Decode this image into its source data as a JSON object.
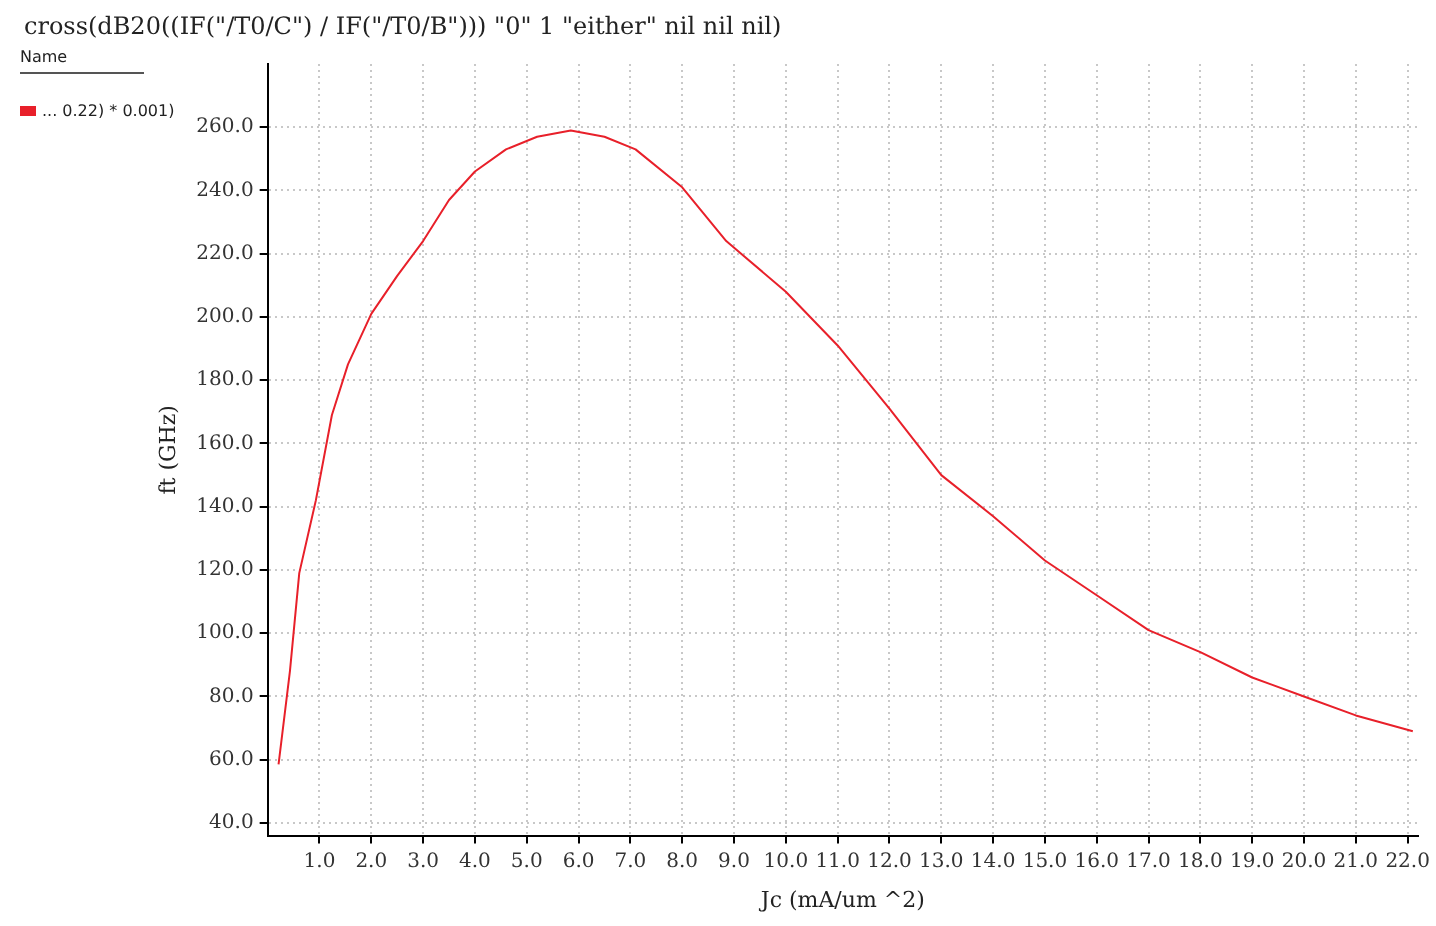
{
  "chart_data": {
    "type": "line",
    "title": "cross(dB20((IF(\"/T0/C\") / IF(\"/T0/B\"))) \"0\" 1 \"either\" nil nil nil)",
    "legend_title": "Name",
    "xlabel": "Jc (mA/um ^2)",
    "ylabel": "ft (GHz)",
    "series": [
      {
        "name": "... 0.22) * 0.001)",
        "color": "#e8202a",
        "x": [
          0.21,
          0.43,
          0.61,
          0.93,
          1.24,
          1.55,
          2.0,
          2.5,
          3.0,
          3.5,
          4.0,
          4.6,
          5.2,
          5.85,
          6.5,
          7.1,
          8.0,
          8.85,
          10.0,
          11.0,
          12.0,
          13.0,
          14.0,
          15.0,
          16.0,
          17.0,
          18.0,
          19.0,
          20.0,
          21.0,
          22.1
        ],
        "values": [
          58.5,
          88,
          119,
          142,
          169,
          185,
          201,
          213,
          224,
          237,
          246,
          253,
          257,
          259,
          257,
          253,
          241,
          224,
          208,
          191,
          171,
          150,
          137,
          123,
          112,
          101,
          94,
          86,
          80,
          74,
          69
        ]
      }
    ],
    "xlim": [
      0,
      22.2
    ],
    "ylim": [
      36,
      280
    ],
    "xticks": [
      {
        "value": 1,
        "label": "1.0"
      },
      {
        "value": 2,
        "label": "2.0"
      },
      {
        "value": 3,
        "label": "3.0"
      },
      {
        "value": 4,
        "label": "4.0"
      },
      {
        "value": 5,
        "label": "5.0"
      },
      {
        "value": 6,
        "label": "6.0"
      },
      {
        "value": 7,
        "label": "7.0"
      },
      {
        "value": 8,
        "label": "8.0"
      },
      {
        "value": 9,
        "label": "9.0"
      },
      {
        "value": 10,
        "label": "10.0"
      },
      {
        "value": 11,
        "label": "11.0"
      },
      {
        "value": 12,
        "label": "12.0"
      },
      {
        "value": 13,
        "label": "13.0"
      },
      {
        "value": 14,
        "label": "14.0"
      },
      {
        "value": 15,
        "label": "15.0"
      },
      {
        "value": 16,
        "label": "16.0"
      },
      {
        "value": 17,
        "label": "17.0"
      },
      {
        "value": 18,
        "label": "18.0"
      },
      {
        "value": 19,
        "label": "19.0"
      },
      {
        "value": 20,
        "label": "20.0"
      },
      {
        "value": 21,
        "label": "21.0"
      },
      {
        "value": 22,
        "label": "22.0"
      }
    ],
    "yticks": [
      {
        "value": 40,
        "label": "40.0"
      },
      {
        "value": 60,
        "label": "60.0"
      },
      {
        "value": 80,
        "label": "80.0"
      },
      {
        "value": 100,
        "label": "100.0"
      },
      {
        "value": 120,
        "label": "120.0"
      },
      {
        "value": 140,
        "label": "140.0"
      },
      {
        "value": 160,
        "label": "160.0"
      },
      {
        "value": 180,
        "label": "180.0"
      },
      {
        "value": 200,
        "label": "200.0"
      },
      {
        "value": 220,
        "label": "220.0"
      },
      {
        "value": 240,
        "label": "240.0"
      },
      {
        "value": 260,
        "label": "260.0"
      }
    ],
    "grid": true,
    "legend": "left",
    "marker": "none",
    "line_style": "solid"
  }
}
